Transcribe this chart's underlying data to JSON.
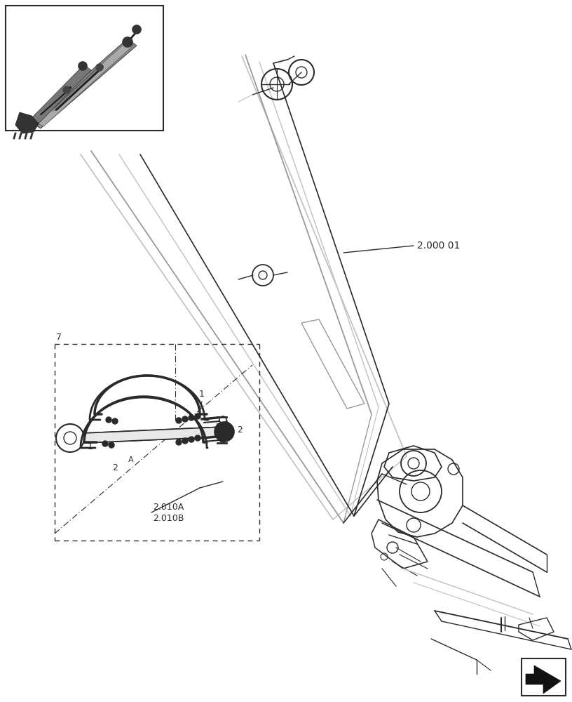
{
  "bg_color": "#ffffff",
  "lc": "#2a2a2a",
  "llc": "#c0c0c0",
  "mlc": "#999999",
  "label_200001": "2.000 01",
  "label_2010A": "2.010A",
  "label_2010B": "2.010B",
  "label_1": "1",
  "label_2": "2",
  "label_A": "A",
  "label_7": "7",
  "figsize": [
    8.16,
    10.0
  ],
  "dpi": 100
}
